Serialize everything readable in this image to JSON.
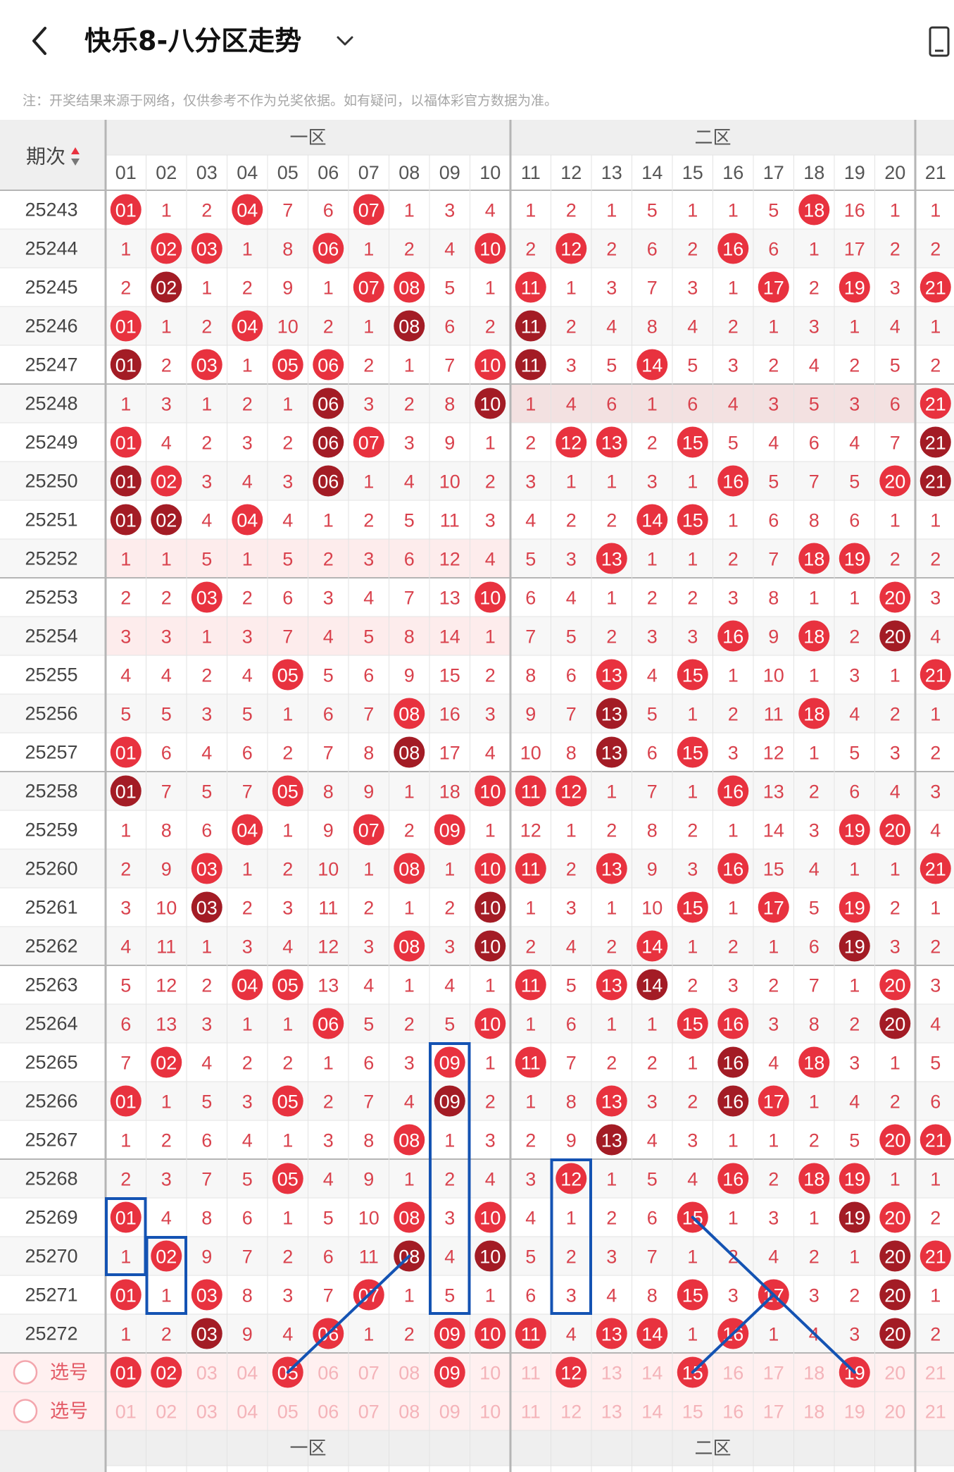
{
  "header": {
    "title": "快乐8-八分区走势",
    "back_icon": "chevron-left-icon",
    "dropdown_icon": "chevron-down-icon",
    "right_icon": "phone-rotate-icon"
  },
  "note": "注：开奖结果来源于网络，仅供参考不作为兑奖依据。如有疑问，以福体彩官方数据为准。",
  "table": {
    "period_header": "期次",
    "sort_icon": "sort-arrows-icon",
    "zone_labels": [
      "一区",
      "二区"
    ],
    "columns": [
      "01",
      "02",
      "03",
      "04",
      "05",
      "06",
      "07",
      "08",
      "09",
      "10",
      "11",
      "12",
      "13",
      "14",
      "15",
      "16",
      "17",
      "18",
      "19",
      "20",
      "21"
    ],
    "select_label": "选号",
    "colors": {
      "red": "#e8323f",
      "dark_red": "#a31c25",
      "miss_text": "#d9424d",
      "header_bg": "#efefef",
      "highlight_row": "#fdecec",
      "dark_row_highlight": "#f3e1e1",
      "line_blue": "#1453b3",
      "grid_line": "#e3e3e3",
      "group_line": "#b5b5b5"
    },
    "rows": [
      {
        "period": "25243",
        "cells": [
          "01",
          "1",
          "2",
          "04",
          "7",
          "6",
          "07",
          "1",
          "3",
          "4",
          "1",
          "2",
          "1",
          "5",
          "1",
          "1",
          "5",
          "18",
          "16",
          "1",
          "1"
        ]
      },
      {
        "period": "25244",
        "cells": [
          "1",
          "02",
          "03",
          "1",
          "8",
          "06",
          "1",
          "2",
          "4",
          "10",
          "2",
          "12",
          "2",
          "6",
          "2",
          "16",
          "6",
          "1",
          "17",
          "2",
          "2"
        ]
      },
      {
        "period": "25245",
        "cells": [
          "2",
          "02",
          "1",
          "2",
          "9",
          "1",
          "07",
          "08",
          "5",
          "1",
          "11",
          "1",
          "3",
          "7",
          "3",
          "1",
          "17",
          "2",
          "19",
          "3",
          "21"
        ]
      },
      {
        "period": "25246",
        "cells": [
          "01",
          "1",
          "2",
          "04",
          "10",
          "2",
          "1",
          "08",
          "6",
          "2",
          "11",
          "2",
          "4",
          "8",
          "4",
          "2",
          "1",
          "3",
          "1",
          "4",
          "1"
        ]
      },
      {
        "period": "25247",
        "cells": [
          "01",
          "2",
          "03",
          "1",
          "05",
          "06",
          "2",
          "1",
          "7",
          "10",
          "11",
          "3",
          "5",
          "14",
          "5",
          "3",
          "2",
          "4",
          "2",
          "5",
          "2"
        ]
      },
      {
        "period": "25248",
        "cells": [
          "1",
          "3",
          "1",
          "2",
          "1",
          "06",
          "3",
          "2",
          "8",
          "10",
          "1",
          "4",
          "6",
          "1",
          "6",
          "4",
          "3",
          "5",
          "3",
          "6",
          "21"
        ]
      },
      {
        "period": "25249",
        "cells": [
          "01",
          "4",
          "2",
          "3",
          "2",
          "06",
          "07",
          "3",
          "9",
          "1",
          "2",
          "12",
          "13",
          "2",
          "15",
          "5",
          "4",
          "6",
          "4",
          "7",
          "21"
        ]
      },
      {
        "period": "25250",
        "cells": [
          "01",
          "02",
          "3",
          "4",
          "3",
          "06",
          "1",
          "4",
          "10",
          "2",
          "3",
          "1",
          "1",
          "3",
          "1",
          "16",
          "5",
          "7",
          "5",
          "20",
          "21"
        ]
      },
      {
        "period": "25251",
        "cells": [
          "01",
          "02",
          "4",
          "04",
          "4",
          "1",
          "2",
          "5",
          "11",
          "3",
          "4",
          "2",
          "2",
          "14",
          "15",
          "1",
          "6",
          "8",
          "6",
          "1",
          "1"
        ]
      },
      {
        "period": "25252",
        "cells": [
          "1",
          "1",
          "5",
          "1",
          "5",
          "2",
          "3",
          "6",
          "12",
          "4",
          "5",
          "3",
          "13",
          "1",
          "1",
          "2",
          "7",
          "18",
          "19",
          "2",
          "2"
        ]
      },
      {
        "period": "25253",
        "cells": [
          "2",
          "2",
          "03",
          "2",
          "6",
          "3",
          "4",
          "7",
          "13",
          "10",
          "6",
          "4",
          "1",
          "2",
          "2",
          "3",
          "8",
          "1",
          "1",
          "20",
          "3"
        ]
      },
      {
        "period": "25254",
        "cells": [
          "3",
          "3",
          "1",
          "3",
          "7",
          "4",
          "5",
          "8",
          "14",
          "1",
          "7",
          "5",
          "2",
          "3",
          "3",
          "16",
          "9",
          "18",
          "2",
          "20",
          "4"
        ]
      },
      {
        "period": "25255",
        "cells": [
          "4",
          "4",
          "2",
          "4",
          "05",
          "5",
          "6",
          "9",
          "15",
          "2",
          "8",
          "6",
          "13",
          "4",
          "15",
          "1",
          "10",
          "1",
          "3",
          "1",
          "21"
        ]
      },
      {
        "period": "25256",
        "cells": [
          "5",
          "5",
          "3",
          "5",
          "1",
          "6",
          "7",
          "08",
          "16",
          "3",
          "9",
          "7",
          "13",
          "5",
          "1",
          "2",
          "11",
          "18",
          "4",
          "2",
          "1"
        ]
      },
      {
        "period": "25257",
        "cells": [
          "01",
          "6",
          "4",
          "6",
          "2",
          "7",
          "8",
          "08",
          "17",
          "4",
          "10",
          "8",
          "13",
          "6",
          "15",
          "3",
          "12",
          "1",
          "5",
          "3",
          "2"
        ]
      },
      {
        "period": "25258",
        "cells": [
          "01",
          "7",
          "5",
          "7",
          "05",
          "8",
          "9",
          "1",
          "18",
          "10",
          "11",
          "12",
          "1",
          "7",
          "1",
          "16",
          "13",
          "2",
          "6",
          "4",
          "3"
        ]
      },
      {
        "period": "25259",
        "cells": [
          "1",
          "8",
          "6",
          "04",
          "1",
          "9",
          "07",
          "2",
          "09",
          "1",
          "12",
          "1",
          "2",
          "8",
          "2",
          "1",
          "14",
          "3",
          "19",
          "20",
          "4"
        ]
      },
      {
        "period": "25260",
        "cells": [
          "2",
          "9",
          "03",
          "1",
          "2",
          "10",
          "1",
          "08",
          "1",
          "10",
          "11",
          "2",
          "13",
          "9",
          "3",
          "16",
          "15",
          "4",
          "1",
          "1",
          "21"
        ]
      },
      {
        "period": "25261",
        "cells": [
          "3",
          "10",
          "03",
          "2",
          "3",
          "11",
          "2",
          "1",
          "2",
          "10",
          "1",
          "3",
          "1",
          "10",
          "15",
          "1",
          "17",
          "5",
          "19",
          "2",
          "1"
        ]
      },
      {
        "period": "25262",
        "cells": [
          "4",
          "11",
          "1",
          "3",
          "4",
          "12",
          "3",
          "08",
          "3",
          "10",
          "2",
          "4",
          "2",
          "14",
          "1",
          "2",
          "1",
          "6",
          "19",
          "3",
          "2"
        ]
      },
      {
        "period": "25263",
        "cells": [
          "5",
          "12",
          "2",
          "04",
          "05",
          "13",
          "4",
          "1",
          "4",
          "1",
          "11",
          "5",
          "13",
          "14",
          "2",
          "3",
          "2",
          "7",
          "1",
          "20",
          "3"
        ]
      },
      {
        "period": "25264",
        "cells": [
          "6",
          "13",
          "3",
          "1",
          "1",
          "06",
          "5",
          "2",
          "5",
          "10",
          "1",
          "6",
          "1",
          "1",
          "15",
          "16",
          "3",
          "8",
          "2",
          "20",
          "4"
        ]
      },
      {
        "period": "25265",
        "cells": [
          "7",
          "02",
          "4",
          "2",
          "2",
          "1",
          "6",
          "3",
          "09",
          "1",
          "11",
          "7",
          "2",
          "2",
          "1",
          "16",
          "4",
          "18",
          "3",
          "1",
          "5"
        ]
      },
      {
        "period": "25266",
        "cells": [
          "01",
          "1",
          "5",
          "3",
          "05",
          "2",
          "7",
          "4",
          "09",
          "2",
          "1",
          "8",
          "13",
          "3",
          "2",
          "16",
          "17",
          "1",
          "4",
          "2",
          "6"
        ]
      },
      {
        "period": "25267",
        "cells": [
          "1",
          "2",
          "6",
          "4",
          "1",
          "3",
          "8",
          "08",
          "1",
          "3",
          "2",
          "9",
          "13",
          "4",
          "3",
          "1",
          "1",
          "2",
          "5",
          "20",
          "21"
        ]
      },
      {
        "period": "25268",
        "cells": [
          "2",
          "3",
          "7",
          "5",
          "05",
          "4",
          "9",
          "1",
          "2",
          "4",
          "3",
          "12",
          "1",
          "5",
          "4",
          "16",
          "2",
          "18",
          "19",
          "1",
          "1"
        ]
      },
      {
        "period": "25269",
        "cells": [
          "01",
          "4",
          "8",
          "6",
          "1",
          "5",
          "10",
          "08",
          "3",
          "10",
          "4",
          "1",
          "2",
          "6",
          "15",
          "1",
          "3",
          "1",
          "19",
          "20",
          "2"
        ]
      },
      {
        "period": "25270",
        "cells": [
          "1",
          "02",
          "9",
          "7",
          "2",
          "6",
          "11",
          "08",
          "4",
          "10",
          "5",
          "2",
          "3",
          "7",
          "1",
          "2",
          "4",
          "2",
          "1",
          "20",
          "21"
        ]
      },
      {
        "period": "25271",
        "cells": [
          "01",
          "1",
          "03",
          "8",
          "3",
          "7",
          "07",
          "1",
          "5",
          "1",
          "6",
          "3",
          "4",
          "8",
          "15",
          "3",
          "17",
          "3",
          "2",
          "20",
          "1"
        ]
      },
      {
        "period": "25272",
        "cells": [
          "1",
          "2",
          "03",
          "9",
          "4",
          "06",
          "1",
          "2",
          "09",
          "10",
          "11",
          "4",
          "13",
          "14",
          "1",
          "16",
          "1",
          "4",
          "3",
          "20",
          "2"
        ]
      }
    ],
    "select_rows": [
      {
        "label": "选号",
        "selected": [
          "01",
          "02",
          "05",
          "09",
          "12",
          "15",
          "19"
        ]
      },
      {
        "label": "选号",
        "selected": []
      }
    ]
  }
}
